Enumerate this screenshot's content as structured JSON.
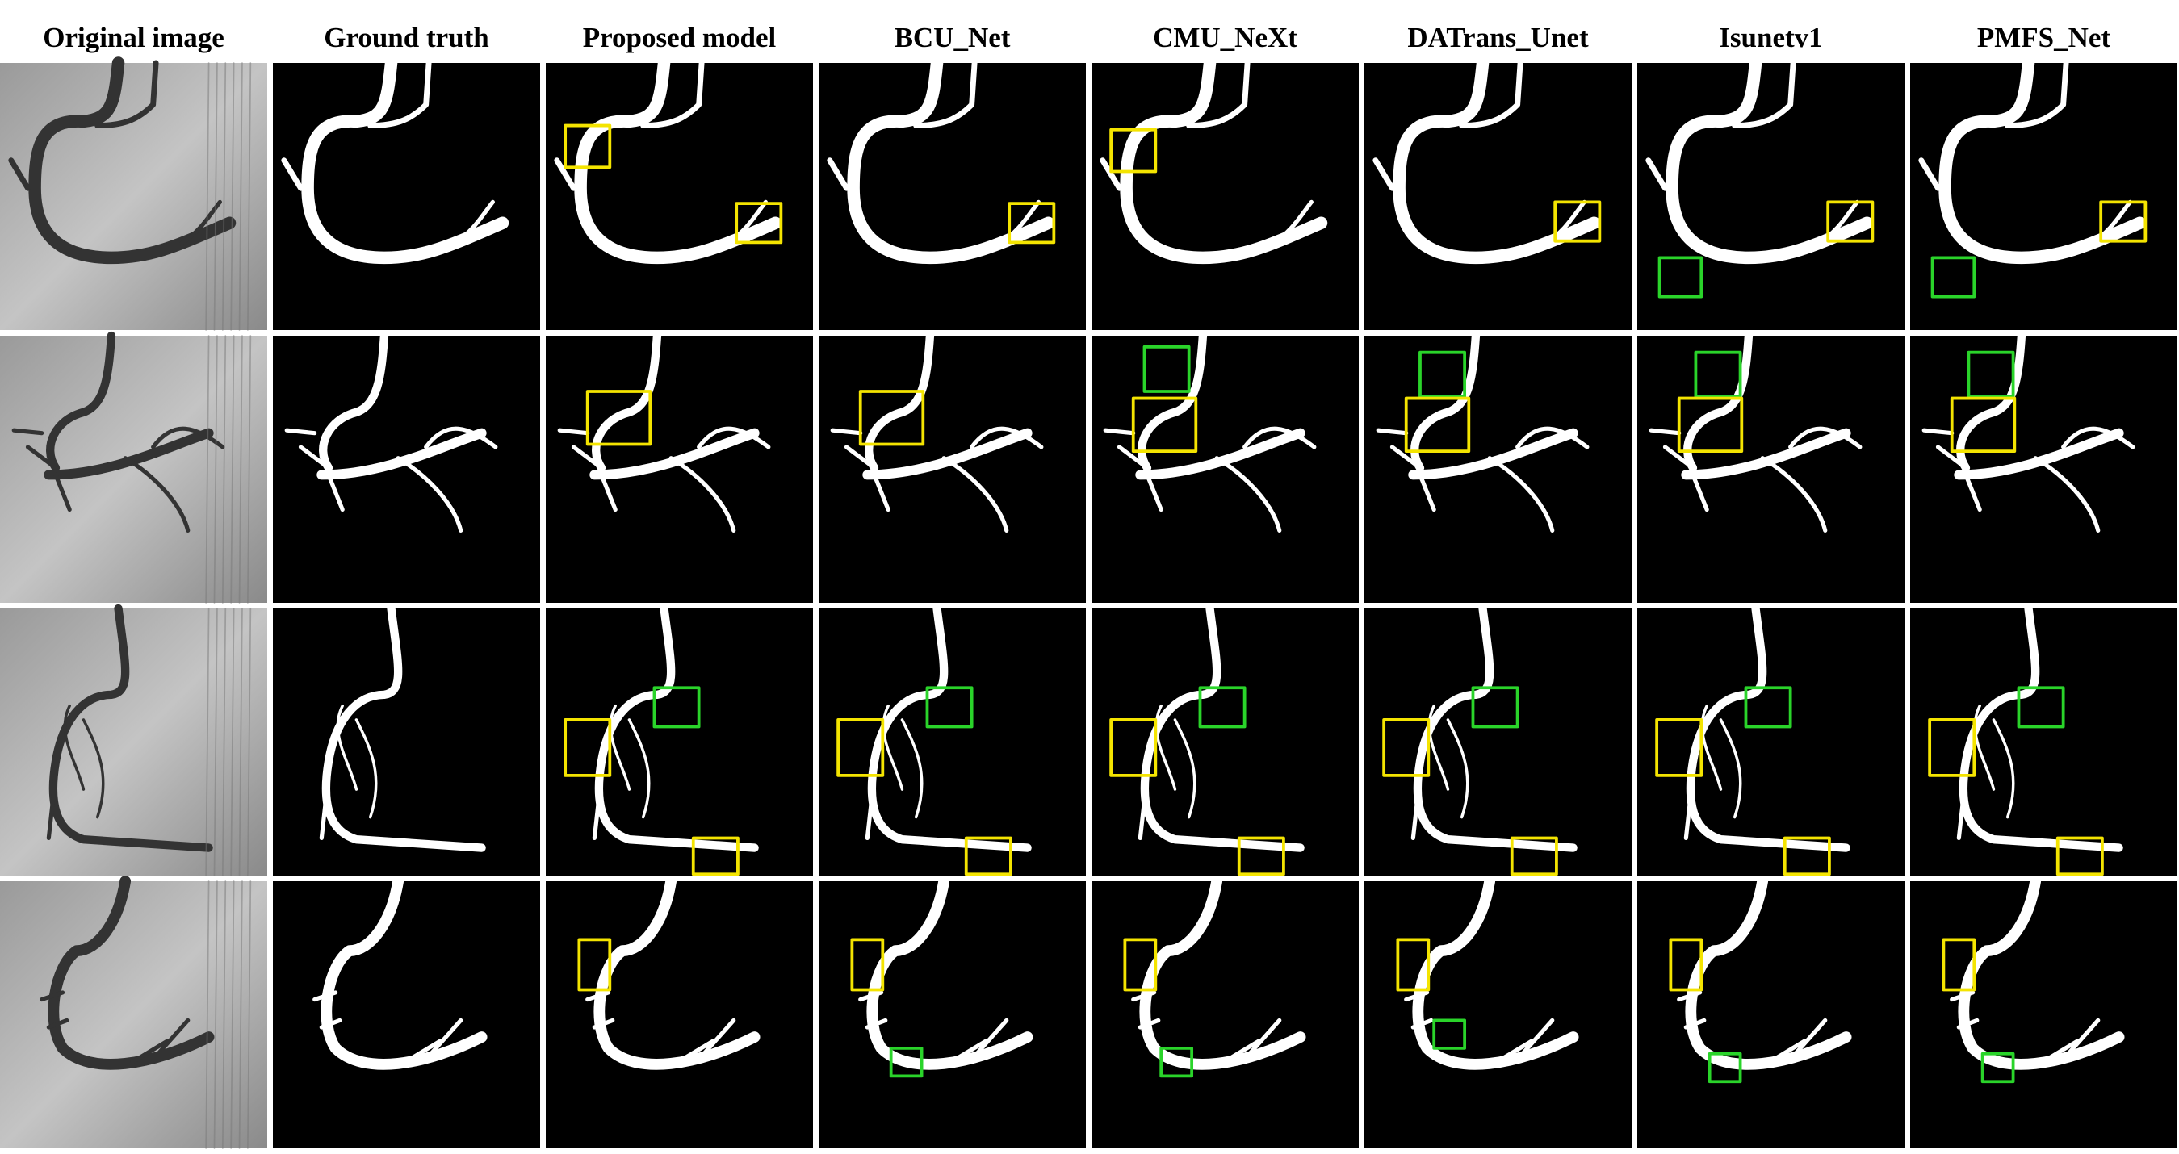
{
  "columns": [
    "Original image",
    "Ground truth",
    "Proposed model",
    "BCU_Net",
    "CMU_NeXt",
    "DATrans_Unet",
    "Isunetv1",
    "PMFS_Net"
  ]
}
